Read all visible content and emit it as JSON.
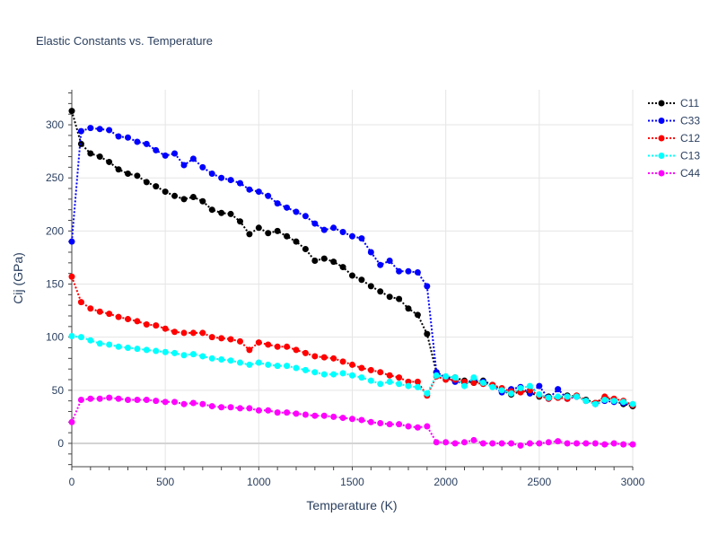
{
  "chart_data": {
    "type": "line",
    "title": "Elastic Constants vs. Temperature",
    "xlabel": "Temperature (K)",
    "ylabel": "Cij (GPa)",
    "xlim": [
      0,
      3000
    ],
    "ylim": [
      -22,
      333
    ],
    "xticks": [
      0,
      500,
      1000,
      1500,
      2000,
      2500,
      3000
    ],
    "xtick_labels": [
      "0",
      "500",
      "1000",
      "1500",
      "2000",
      "2500",
      "3000"
    ],
    "yticks": [
      0,
      50,
      100,
      150,
      200,
      250,
      300
    ],
    "ytick_labels": [
      "0",
      "50",
      "100",
      "150",
      "200",
      "250",
      "300"
    ],
    "grid": true,
    "legend_position": "top-right",
    "x": [
      0,
      50,
      100,
      150,
      200,
      250,
      300,
      350,
      400,
      450,
      500,
      550,
      600,
      650,
      700,
      750,
      800,
      850,
      900,
      950,
      1000,
      1050,
      1100,
      1150,
      1200,
      1250,
      1300,
      1350,
      1400,
      1450,
      1500,
      1550,
      1600,
      1650,
      1700,
      1750,
      1800,
      1850,
      1900,
      1950,
      2000,
      2050,
      2100,
      2150,
      2200,
      2250,
      2300,
      2350,
      2400,
      2450,
      2500,
      2550,
      2600,
      2650,
      2700,
      2750,
      2800,
      2850,
      2900,
      2950,
      3000
    ],
    "series": [
      {
        "name": "C11",
        "color": "#000000",
        "values": [
          313,
          282,
          273,
          270,
          265,
          258,
          254,
          252,
          246,
          242,
          237,
          233,
          230,
          232,
          228,
          220,
          217,
          216,
          209,
          197,
          203,
          198,
          200,
          195,
          190,
          183,
          172,
          174,
          171,
          166,
          158,
          154,
          148,
          143,
          138,
          136,
          127,
          121,
          103,
          67,
          62,
          62,
          59,
          57,
          59,
          55,
          50,
          46,
          49,
          48,
          44,
          44,
          43,
          45,
          44,
          41,
          38,
          43,
          40,
          37,
          35
        ]
      },
      {
        "name": "C33",
        "color": "#0000ff",
        "values": [
          190,
          294,
          297,
          296,
          295,
          289,
          288,
          284,
          282,
          276,
          271,
          273,
          262,
          268,
          260,
          254,
          250,
          248,
          245,
          239,
          237,
          233,
          226,
          222,
          218,
          214,
          207,
          201,
          203,
          199,
          195,
          193,
          180,
          168,
          172,
          162,
          162,
          161,
          148,
          67,
          62,
          58,
          57,
          60,
          58,
          54,
          48,
          51,
          53,
          47,
          54,
          42,
          51,
          42,
          44,
          40,
          37,
          40,
          39,
          38,
          36
        ]
      },
      {
        "name": "C12",
        "color": "#ff0000",
        "values": [
          157,
          133,
          127,
          124,
          122,
          119,
          117,
          115,
          112,
          111,
          108,
          105,
          104,
          104,
          104,
          100,
          99,
          98,
          96,
          88,
          95,
          93,
          91,
          91,
          88,
          85,
          82,
          81,
          80,
          77,
          74,
          71,
          69,
          67,
          64,
          62,
          58,
          58,
          45,
          63,
          60,
          60,
          58,
          57,
          56,
          55,
          52,
          49,
          48,
          50,
          45,
          42,
          43,
          42,
          45,
          40,
          38,
          44,
          42,
          40,
          36
        ]
      },
      {
        "name": "C13",
        "color": "#00ffff",
        "values": [
          101,
          100,
          97,
          94,
          93,
          91,
          90,
          89,
          88,
          87,
          86,
          85,
          83,
          84,
          82,
          80,
          79,
          78,
          76,
          74,
          76,
          74,
          73,
          73,
          71,
          69,
          67,
          65,
          65,
          66,
          64,
          62,
          59,
          56,
          58,
          56,
          54,
          53,
          47,
          64,
          63,
          62,
          54,
          62,
          57,
          53,
          50,
          47,
          52,
          54,
          46,
          43,
          44,
          44,
          44,
          40,
          37,
          41,
          40,
          39,
          37
        ]
      },
      {
        "name": "C44",
        "color": "#ff00ff",
        "values": [
          20,
          41,
          42,
          42,
          43,
          42,
          41,
          41,
          41,
          40,
          39,
          39,
          37,
          38,
          37,
          35,
          34,
          34,
          33,
          33,
          31,
          31,
          29,
          29,
          28,
          27,
          26,
          26,
          25,
          24,
          23,
          22,
          20,
          19,
          18,
          18,
          16,
          15,
          16,
          1,
          1,
          0,
          1,
          3,
          0,
          0,
          0,
          0,
          -2,
          0,
          0,
          1,
          2,
          0,
          0,
          0,
          0,
          -1,
          0,
          -1,
          -1
        ]
      }
    ]
  }
}
